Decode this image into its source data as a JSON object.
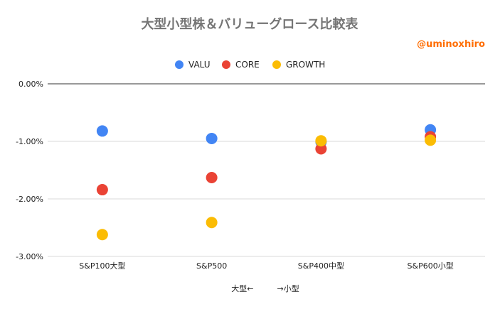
{
  "chart_data": {
    "type": "scatter",
    "title": "大型小型株＆バリューグロース比較表",
    "credit": "@uminoxhiro",
    "xlabel": "大型←　　　→小型",
    "ylabel": "",
    "categories": [
      "S&P100大型",
      "S&P500",
      "S&P400中型",
      "S&P600小型"
    ],
    "ylim": [
      -3.0,
      0.0
    ],
    "yticks": [
      "0.00%",
      "-1.00%",
      "-2.00%",
      "-3.00%"
    ],
    "grid": true,
    "legend_position": "top",
    "series": [
      {
        "name": "VALU",
        "color": "#4285f4",
        "values": [
          -0.82,
          -0.95,
          -1.01,
          -0.8
        ]
      },
      {
        "name": "CORE",
        "color": "#ea4335",
        "values": [
          -1.84,
          -1.63,
          -1.13,
          -0.92
        ]
      },
      {
        "name": "GROWTH",
        "color": "#fbbc04",
        "values": [
          -2.62,
          -2.41,
          -0.99,
          -0.98
        ]
      }
    ]
  }
}
